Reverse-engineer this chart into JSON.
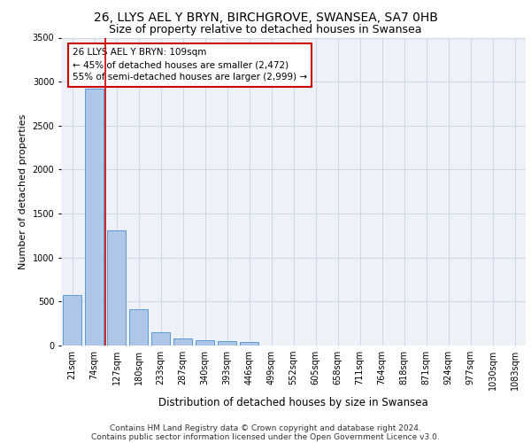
{
  "title1": "26, LLYS AEL Y BRYN, BIRCHGROVE, SWANSEA, SA7 0HB",
  "title2": "Size of property relative to detached houses in Swansea",
  "xlabel": "Distribution of detached houses by size in Swansea",
  "ylabel": "Number of detached properties",
  "footer1": "Contains HM Land Registry data © Crown copyright and database right 2024.",
  "footer2": "Contains public sector information licensed under the Open Government Licence v3.0.",
  "categories": [
    "21sqm",
    "74sqm",
    "127sqm",
    "180sqm",
    "233sqm",
    "287sqm",
    "340sqm",
    "393sqm",
    "446sqm",
    "499sqm",
    "552sqm",
    "605sqm",
    "658sqm",
    "711sqm",
    "764sqm",
    "818sqm",
    "871sqm",
    "924sqm",
    "977sqm",
    "1030sqm",
    "1083sqm"
  ],
  "bar_values": [
    570,
    2920,
    1310,
    410,
    155,
    80,
    60,
    55,
    45,
    0,
    0,
    0,
    0,
    0,
    0,
    0,
    0,
    0,
    0,
    0,
    0
  ],
  "bar_color": "#aec6e8",
  "bar_edge_color": "#5a9bd5",
  "grid_color": "#d0d8e8",
  "background_color": "#eef2f8",
  "vline_color": "#cc0000",
  "annotation_text": "26 LLYS AEL Y BRYN: 109sqm\n← 45% of detached houses are smaller (2,472)\n55% of semi-detached houses are larger (2,999) →",
  "ylim": [
    0,
    3500
  ],
  "title1_fontsize": 10,
  "title2_fontsize": 9,
  "xlabel_fontsize": 8.5,
  "ylabel_fontsize": 8,
  "tick_fontsize": 7,
  "annotation_fontsize": 7.5,
  "footer_fontsize": 6.5
}
